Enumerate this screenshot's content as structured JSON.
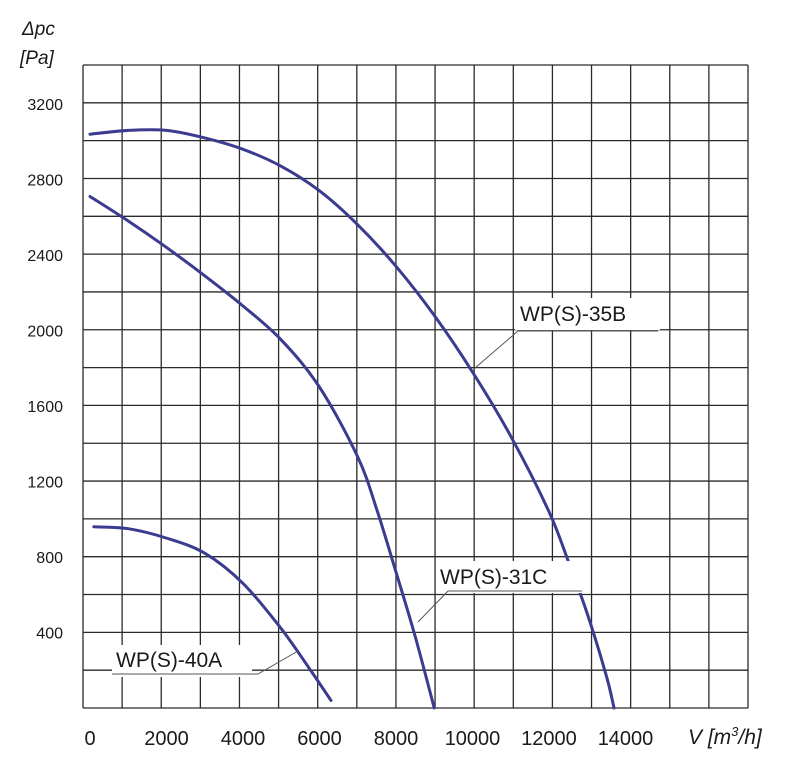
{
  "chart_data": {
    "type": "line",
    "title": "",
    "ylabel_line1": "Δpc",
    "ylabel_line2": "[Pa]",
    "xlabel": "V [m",
    "xlabel_sup": "3",
    "xlabel_tail": "/h]",
    "xlim": [
      0,
      14000
    ],
    "ylim": [
      0,
      3200
    ],
    "x_ticks": [
      0,
      2000,
      4000,
      6000,
      8000,
      10000,
      12000,
      14000
    ],
    "y_ticks": [
      400,
      800,
      1200,
      1600,
      2000,
      2400,
      2800,
      3200
    ],
    "grid": true,
    "colors": {
      "curve": "#3b3b8f",
      "grid": "#2a2a2a"
    },
    "series": [
      {
        "name": "WP(S)-35B",
        "x": [
          0,
          1000,
          2000,
          3000,
          4000,
          5000,
          6000,
          7000,
          8000,
          9000,
          10000,
          11000,
          12000,
          12500,
          13000,
          13500,
          13700
        ],
        "y": [
          3040,
          3060,
          3060,
          3020,
          2960,
          2870,
          2740,
          2560,
          2340,
          2080,
          1780,
          1440,
          1040,
          780,
          500,
          170,
          0
        ]
      },
      {
        "name": "WP(S)-31C",
        "x": [
          0,
          1000,
          2000,
          3000,
          4000,
          5000,
          6000,
          7000,
          7500,
          8000,
          8500,
          9000
        ],
        "y": [
          2710,
          2580,
          2440,
          2290,
          2130,
          1950,
          1700,
          1330,
          1050,
          720,
          380,
          0
        ]
      },
      {
        "name": "WP(S)-40A",
        "x": [
          100,
          1000,
          2000,
          3000,
          4000,
          5000,
          5800,
          6300
        ],
        "y": [
          960,
          950,
          900,
          820,
          660,
          420,
          190,
          40
        ]
      }
    ],
    "labels": [
      {
        "series": "WP(S)-35B",
        "text": "WP(S)-35B"
      },
      {
        "series": "WP(S)-31C",
        "text": "WP(S)-31C"
      },
      {
        "series": "WP(S)-40A",
        "text": "WP(S)-40A"
      }
    ]
  }
}
